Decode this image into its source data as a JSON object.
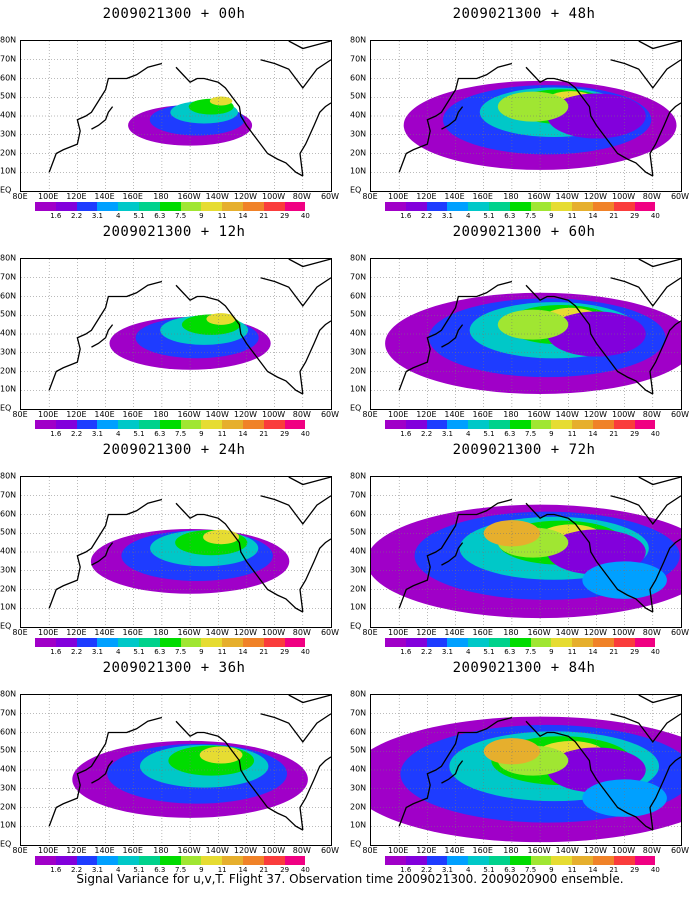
{
  "caption": "Signal Variance for u,v,T. Flight 37. Observation time 2009021300. 2009020900 ensemble.",
  "panels": [
    {
      "title": "2009021300 + 00h",
      "lead_hours": 0
    },
    {
      "title": "2009021300 + 48h",
      "lead_hours": 48
    },
    {
      "title": "2009021300 + 12h",
      "lead_hours": 12
    },
    {
      "title": "2009021300 + 60h",
      "lead_hours": 60
    },
    {
      "title": "2009021300 + 24h",
      "lead_hours": 24
    },
    {
      "title": "2009021300 + 72h",
      "lead_hours": 72
    },
    {
      "title": "2009021300 + 36h",
      "lead_hours": 36
    },
    {
      "title": "2009021300 + 84h",
      "lead_hours": 84
    }
  ],
  "x_ticks": [
    "80E",
    "100E",
    "120E",
    "140E",
    "160E",
    "180",
    "160W",
    "140W",
    "120W",
    "100W",
    "80W",
    "60W"
  ],
  "y_ticks": [
    "EQ",
    "10N",
    "20N",
    "30N",
    "40N",
    "50N",
    "60N",
    "70N",
    "80N"
  ],
  "colorbar": {
    "levels": [
      "1.6",
      "2.2",
      "3.1",
      "4",
      "5.1",
      "6.3",
      "7.5",
      "9",
      "11",
      "14",
      "21",
      "29",
      "40"
    ],
    "colors": [
      "#a000c8",
      "#8200dc",
      "#1e3cff",
      "#00a0ff",
      "#00c8c8",
      "#00d28c",
      "#00dc00",
      "#a0e632",
      "#e6dc32",
      "#e6af2d",
      "#f08228",
      "#fa3c3c",
      "#f00082"
    ]
  }
}
